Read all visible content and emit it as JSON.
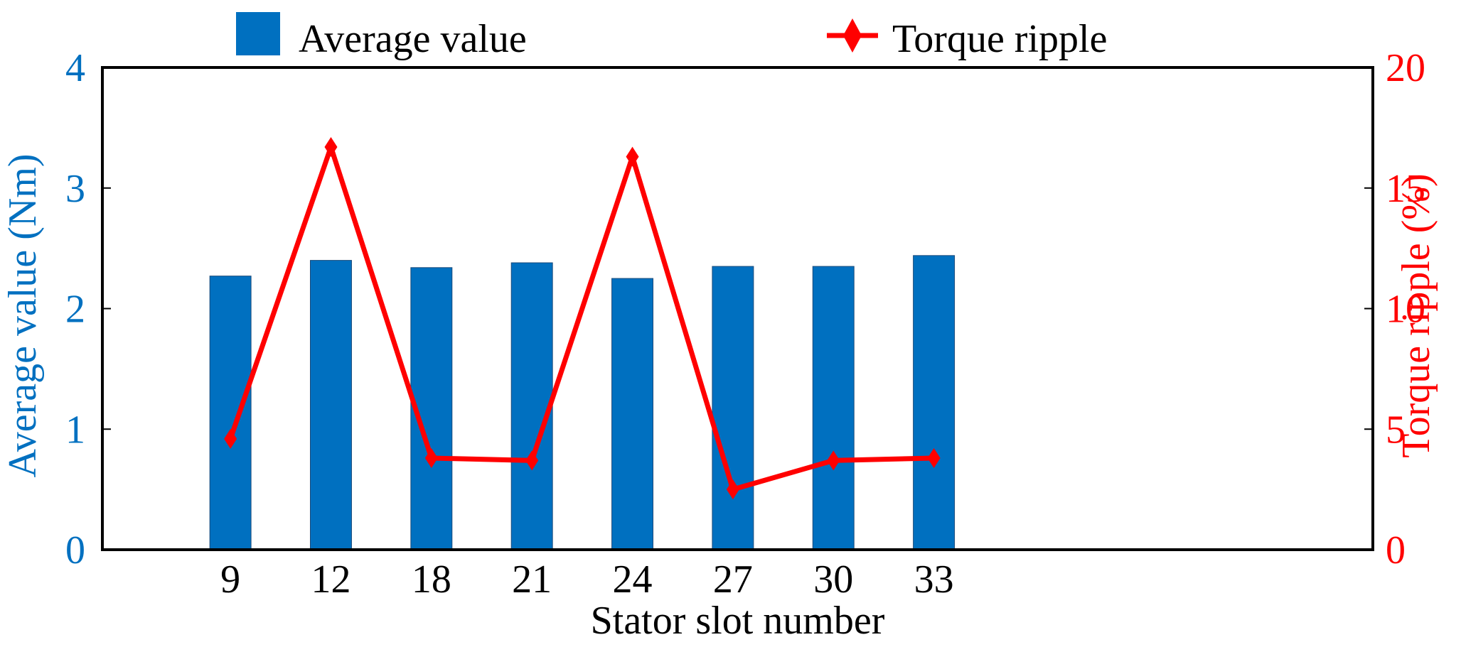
{
  "chart_data": {
    "type": "bar",
    "categories": [
      "9",
      "12",
      "18",
      "21",
      "24",
      "27",
      "30",
      "33"
    ],
    "series": [
      {
        "name": "Average value",
        "type": "bar",
        "axis": "left",
        "values": [
          2.27,
          2.4,
          2.34,
          2.38,
          2.25,
          2.35,
          2.35,
          2.44
        ]
      },
      {
        "name": "Torque ripple",
        "type": "line",
        "axis": "right",
        "marker": "diamond",
        "values": [
          4.6,
          16.7,
          3.8,
          3.7,
          16.3,
          2.5,
          3.7,
          3.8
        ]
      }
    ],
    "xlabel": "Stator slot number",
    "ylabel_left": "Average value (Nm)",
    "ylabel_right": "Torque ripple (%)",
    "ylim_left": [
      0,
      4
    ],
    "ylim_right": [
      0,
      20
    ],
    "yticks_left": [
      "0",
      "1",
      "2",
      "3",
      "4"
    ],
    "yticks_right": [
      "0",
      "5",
      "10",
      "15",
      "20"
    ],
    "grid": false,
    "legend_position": "top",
    "colors": {
      "bar": "#0070C0",
      "line": "#FF0000",
      "left_axis": "#0070C0",
      "right_axis": "#FF0000",
      "frame": "#000000"
    }
  }
}
